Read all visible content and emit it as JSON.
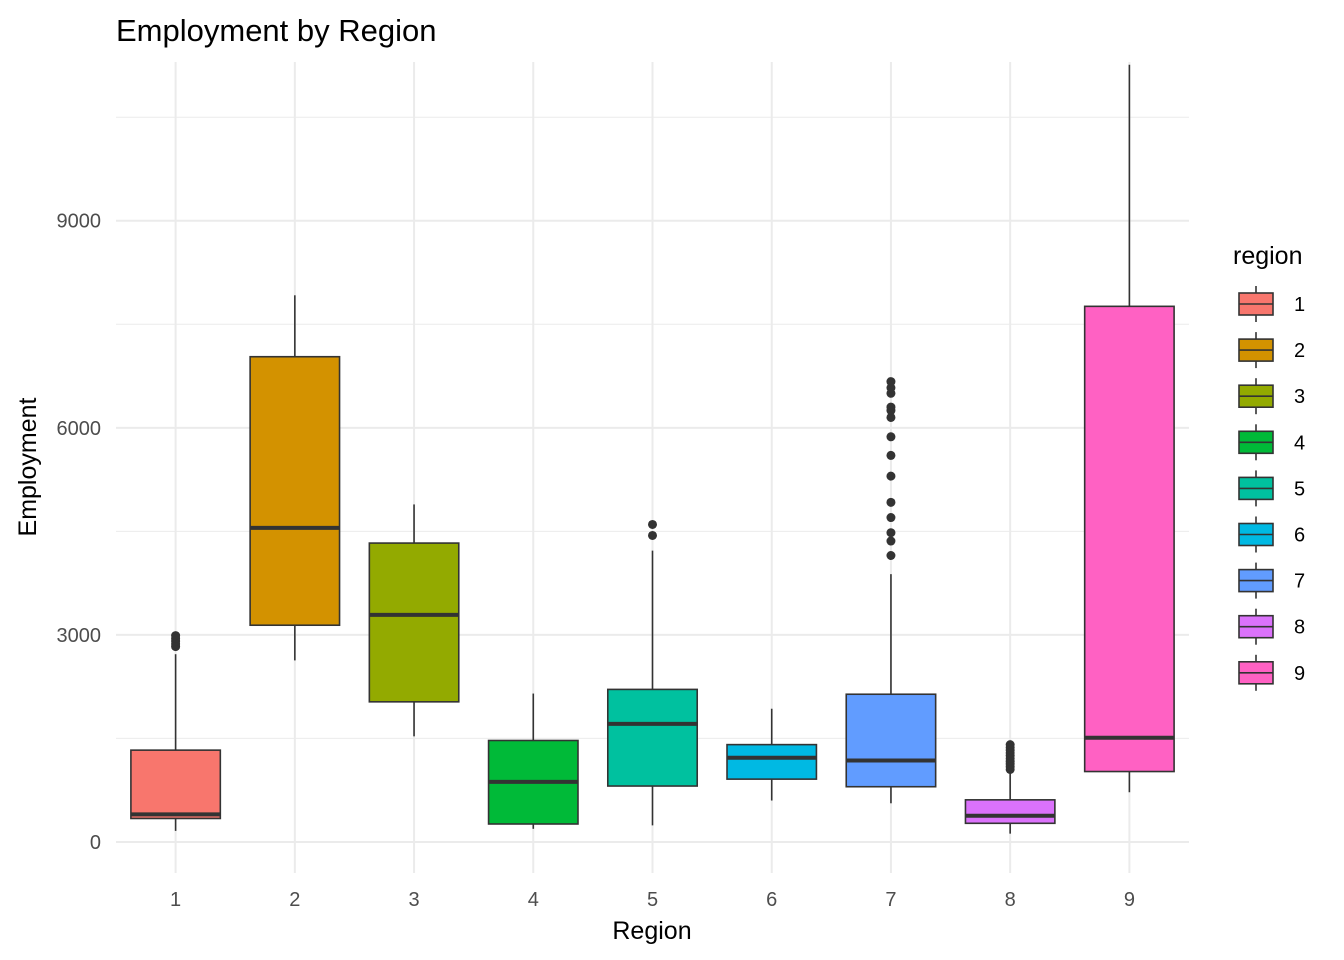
{
  "chart_data": {
    "type": "boxplot",
    "title": "Employment by Region",
    "xlabel": "Region",
    "ylabel": "Employment",
    "ylim": [
      -450,
      11300
    ],
    "y_ticks": [
      0,
      3000,
      6000,
      9000
    ],
    "y_minor_ticks": [
      1500,
      4500,
      7500,
      10500
    ],
    "grid": true,
    "legend_title": "region",
    "legend_position": "right",
    "categories": [
      "1",
      "2",
      "3",
      "4",
      "5",
      "6",
      "7",
      "8",
      "9"
    ],
    "boxes": [
      {
        "region": "1",
        "color": "#F8766D",
        "min": 160,
        "q1": 340,
        "median": 400,
        "q3": 1330,
        "max": 2720,
        "outliers": [
          2830,
          2870,
          2910,
          2950,
          2990
        ]
      },
      {
        "region": "2",
        "color": "#D39200",
        "min": 2630,
        "q1": 3140,
        "median": 4550,
        "q3": 7030,
        "max": 7920,
        "outliers": []
      },
      {
        "region": "3",
        "color": "#93AA00",
        "min": 1530,
        "q1": 2030,
        "median": 3290,
        "q3": 4330,
        "max": 4890,
        "outliers": []
      },
      {
        "region": "4",
        "color": "#00BA38",
        "min": 190,
        "q1": 260,
        "median": 870,
        "q3": 1470,
        "max": 2150,
        "outliers": []
      },
      {
        "region": "5",
        "color": "#00C19F",
        "min": 240,
        "q1": 810,
        "median": 1710,
        "q3": 2210,
        "max": 4220,
        "outliers": [
          4440,
          4600
        ]
      },
      {
        "region": "6",
        "color": "#00B9E3",
        "min": 600,
        "q1": 910,
        "median": 1220,
        "q3": 1410,
        "max": 1930,
        "outliers": []
      },
      {
        "region": "7",
        "color": "#619CFF",
        "min": 560,
        "q1": 800,
        "median": 1180,
        "q3": 2140,
        "max": 3880,
        "outliers": [
          4150,
          4360,
          4480,
          4700,
          4920,
          5300,
          5600,
          5870,
          6150,
          6250,
          6300,
          6500,
          6580,
          6670
        ]
      },
      {
        "region": "8",
        "color": "#DB72FB",
        "min": 120,
        "q1": 270,
        "median": 380,
        "q3": 610,
        "max": 1000,
        "outliers": [
          1050,
          1090,
          1130,
          1170,
          1210,
          1250,
          1290,
          1330,
          1370,
          1410
        ]
      },
      {
        "region": "9",
        "color": "#FF61C3",
        "min": 720,
        "q1": 1020,
        "median": 1510,
        "q3": 7760,
        "max": 11260,
        "outliers": []
      }
    ]
  }
}
